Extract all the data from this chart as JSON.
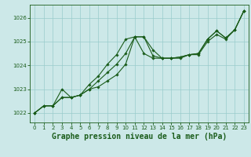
{
  "x": [
    0,
    1,
    2,
    3,
    4,
    5,
    6,
    7,
    8,
    9,
    10,
    11,
    12,
    13,
    14,
    15,
    16,
    17,
    18,
    19,
    20,
    21,
    22,
    23
  ],
  "line1": [
    1022.0,
    1022.3,
    1022.3,
    1022.65,
    1022.65,
    1022.75,
    1023.0,
    1023.35,
    1023.7,
    1024.05,
    1024.5,
    1025.2,
    1025.2,
    1024.65,
    1024.3,
    1024.3,
    1024.35,
    1024.45,
    1024.5,
    1025.1,
    1025.45,
    1025.15,
    1025.5,
    1026.3
  ],
  "line2": [
    1022.0,
    1022.3,
    1022.3,
    1023.0,
    1022.65,
    1022.75,
    1023.0,
    1023.1,
    1023.35,
    1023.6,
    1024.05,
    1025.2,
    1025.2,
    1024.4,
    1024.3,
    1024.3,
    1024.35,
    1024.45,
    1024.5,
    1025.1,
    1025.45,
    1025.15,
    1025.5,
    1026.3
  ],
  "line3": [
    1022.0,
    1022.3,
    1022.3,
    1022.65,
    1022.65,
    1022.75,
    1023.2,
    1023.55,
    1024.05,
    1024.45,
    1025.1,
    1025.2,
    1024.5,
    1024.3,
    1024.3,
    1024.3,
    1024.3,
    1024.45,
    1024.45,
    1025.0,
    1025.3,
    1025.1,
    1025.5,
    1026.3
  ],
  "bg_color": "#cce8e8",
  "grid_color": "#99cccc",
  "line_color": "#1a5c1a",
  "xlabel": "Graphe pression niveau de la mer (hPa)",
  "ylim": [
    1021.6,
    1026.55
  ],
  "xlim": [
    -0.5,
    23.5
  ],
  "yticks": [
    1022,
    1023,
    1024,
    1025,
    1026
  ],
  "xticks": [
    0,
    1,
    2,
    3,
    4,
    5,
    6,
    7,
    8,
    9,
    10,
    11,
    12,
    13,
    14,
    15,
    16,
    17,
    18,
    19,
    20,
    21,
    22,
    23
  ],
  "tick_fontsize": 5.0,
  "xlabel_fontsize": 7.0,
  "marker_size": 1.8,
  "line_width": 0.8
}
